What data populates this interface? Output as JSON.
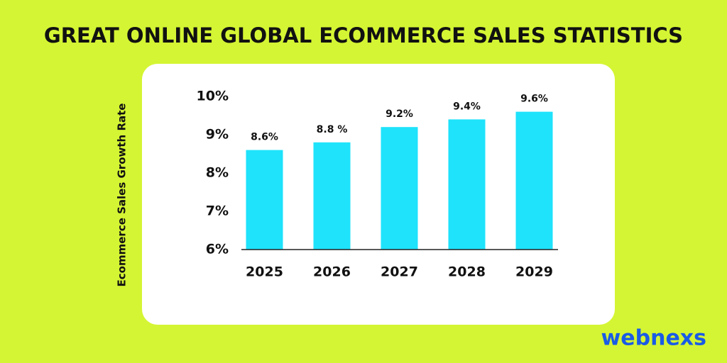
{
  "chart_data": {
    "type": "bar",
    "title": "GREAT ONLINE GLOBAL ECOMMERCE SALES STATISTICS",
    "ylabel": "Ecommerce Sales Growth Rate",
    "categories": [
      "2025",
      "2026",
      "2027",
      "2028",
      "2029"
    ],
    "values": [
      8.6,
      8.8,
      9.2,
      9.4,
      9.6
    ],
    "value_labels": [
      "8.6%",
      "8.8 %",
      "9.2%",
      "9.4%",
      "9.6%"
    ],
    "color": "#1ee3fb",
    "ylim": [
      6,
      10
    ],
    "yticks": [
      {
        "value": 6,
        "label": "6%"
      },
      {
        "value": 7,
        "label": "7%"
      },
      {
        "value": 8,
        "label": "8%"
      },
      {
        "value": 9,
        "label": "9%"
      },
      {
        "value": 10,
        "label": "10%"
      }
    ],
    "grid": false
  },
  "brand": "webnexs"
}
